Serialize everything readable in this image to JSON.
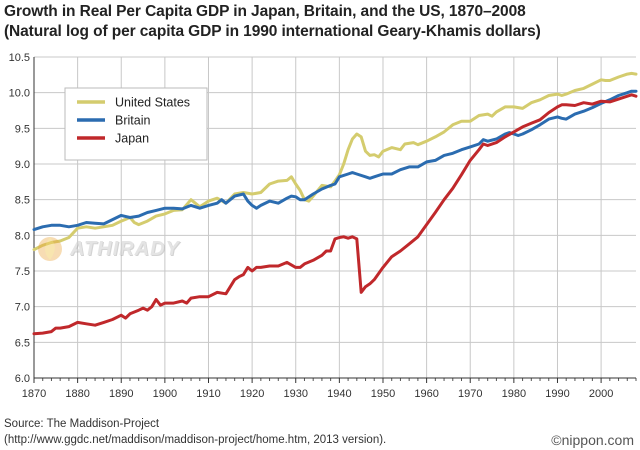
{
  "title_line1": "Growth in Real Per Capita GDP in Japan, Britain, and the US, 1870–2008",
  "title_line2": "(Natural log of per capita GDP in 1990 international Geary-Khamis dollars)",
  "source_line1": "Source: The Maddison-Project",
  "source_line2": "(http://www.ggdc.net/maddison/maddison-project/home.htm, 2013 version).",
  "credit": "©nippon.com",
  "watermark": "ATHIRADY",
  "chart_data": {
    "type": "line",
    "title": "Growth in Real Per Capita GDP in Japan, Britain, and the US, 1870–2008",
    "xlabel": "",
    "ylabel": "",
    "xlim": [
      1870,
      2008
    ],
    "ylim": [
      6.0,
      10.5
    ],
    "grid": true,
    "legend_position": "top-left",
    "x_ticks": [
      1870,
      1880,
      1890,
      1900,
      1910,
      1920,
      1930,
      1940,
      1950,
      1960,
      1970,
      1980,
      1990,
      2000
    ],
    "y_ticks": [
      "6.0",
      "6.5",
      "7.0",
      "7.5",
      "8.0",
      "8.5",
      "9.0",
      "9.5",
      "10.0",
      "10.5"
    ],
    "series": [
      {
        "name": "United States",
        "color": "#d4cc6e",
        "points": [
          [
            1870,
            7.8
          ],
          [
            1872,
            7.86
          ],
          [
            1874,
            7.9
          ],
          [
            1876,
            7.92
          ],
          [
            1878,
            7.97
          ],
          [
            1880,
            8.1
          ],
          [
            1882,
            8.12
          ],
          [
            1884,
            8.1
          ],
          [
            1886,
            8.12
          ],
          [
            1888,
            8.14
          ],
          [
            1890,
            8.2
          ],
          [
            1892,
            8.25
          ],
          [
            1893,
            8.18
          ],
          [
            1894,
            8.15
          ],
          [
            1896,
            8.2
          ],
          [
            1898,
            8.27
          ],
          [
            1900,
            8.3
          ],
          [
            1902,
            8.35
          ],
          [
            1904,
            8.36
          ],
          [
            1906,
            8.5
          ],
          [
            1908,
            8.4
          ],
          [
            1910,
            8.48
          ],
          [
            1912,
            8.52
          ],
          [
            1914,
            8.45
          ],
          [
            1916,
            8.58
          ],
          [
            1918,
            8.6
          ],
          [
            1920,
            8.58
          ],
          [
            1922,
            8.6
          ],
          [
            1924,
            8.72
          ],
          [
            1926,
            8.76
          ],
          [
            1928,
            8.77
          ],
          [
            1929,
            8.82
          ],
          [
            1930,
            8.72
          ],
          [
            1931,
            8.63
          ],
          [
            1932,
            8.5
          ],
          [
            1933,
            8.48
          ],
          [
            1934,
            8.55
          ],
          [
            1936,
            8.7
          ],
          [
            1938,
            8.68
          ],
          [
            1939,
            8.76
          ],
          [
            1940,
            8.85
          ],
          [
            1941,
            9.0
          ],
          [
            1942,
            9.2
          ],
          [
            1943,
            9.35
          ],
          [
            1944,
            9.42
          ],
          [
            1945,
            9.38
          ],
          [
            1946,
            9.18
          ],
          [
            1947,
            9.12
          ],
          [
            1948,
            9.13
          ],
          [
            1949,
            9.1
          ],
          [
            1950,
            9.18
          ],
          [
            1952,
            9.23
          ],
          [
            1954,
            9.2
          ],
          [
            1955,
            9.28
          ],
          [
            1957,
            9.3
          ],
          [
            1958,
            9.27
          ],
          [
            1960,
            9.32
          ],
          [
            1962,
            9.38
          ],
          [
            1964,
            9.45
          ],
          [
            1966,
            9.55
          ],
          [
            1968,
            9.6
          ],
          [
            1970,
            9.6
          ],
          [
            1972,
            9.68
          ],
          [
            1974,
            9.7
          ],
          [
            1975,
            9.67
          ],
          [
            1976,
            9.73
          ],
          [
            1978,
            9.8
          ],
          [
            1980,
            9.8
          ],
          [
            1982,
            9.78
          ],
          [
            1984,
            9.86
          ],
          [
            1986,
            9.9
          ],
          [
            1988,
            9.96
          ],
          [
            1990,
            9.98
          ],
          [
            1991,
            9.96
          ],
          [
            1992,
            9.98
          ],
          [
            1994,
            10.03
          ],
          [
            1996,
            10.06
          ],
          [
            1998,
            10.12
          ],
          [
            2000,
            10.18
          ],
          [
            2001,
            10.17
          ],
          [
            2002,
            10.17
          ],
          [
            2004,
            10.22
          ],
          [
            2006,
            10.26
          ],
          [
            2007,
            10.27
          ],
          [
            2008,
            10.26
          ]
        ]
      },
      {
        "name": "Britain",
        "color": "#2b6cb0",
        "points": [
          [
            1870,
            8.08
          ],
          [
            1872,
            8.12
          ],
          [
            1874,
            8.14
          ],
          [
            1876,
            8.14
          ],
          [
            1878,
            8.12
          ],
          [
            1880,
            8.14
          ],
          [
            1882,
            8.18
          ],
          [
            1884,
            8.17
          ],
          [
            1886,
            8.16
          ],
          [
            1888,
            8.22
          ],
          [
            1890,
            8.28
          ],
          [
            1892,
            8.25
          ],
          [
            1894,
            8.27
          ],
          [
            1896,
            8.32
          ],
          [
            1898,
            8.35
          ],
          [
            1900,
            8.38
          ],
          [
            1902,
            8.38
          ],
          [
            1904,
            8.37
          ],
          [
            1906,
            8.42
          ],
          [
            1908,
            8.38
          ],
          [
            1910,
            8.42
          ],
          [
            1912,
            8.45
          ],
          [
            1913,
            8.5
          ],
          [
            1914,
            8.45
          ],
          [
            1916,
            8.55
          ],
          [
            1918,
            8.58
          ],
          [
            1919,
            8.48
          ],
          [
            1920,
            8.42
          ],
          [
            1921,
            8.38
          ],
          [
            1922,
            8.42
          ],
          [
            1924,
            8.48
          ],
          [
            1926,
            8.45
          ],
          [
            1928,
            8.52
          ],
          [
            1929,
            8.55
          ],
          [
            1930,
            8.54
          ],
          [
            1931,
            8.5
          ],
          [
            1932,
            8.5
          ],
          [
            1934,
            8.58
          ],
          [
            1936,
            8.65
          ],
          [
            1938,
            8.7
          ],
          [
            1939,
            8.72
          ],
          [
            1940,
            8.82
          ],
          [
            1942,
            8.86
          ],
          [
            1943,
            8.88
          ],
          [
            1944,
            8.86
          ],
          [
            1946,
            8.82
          ],
          [
            1947,
            8.8
          ],
          [
            1948,
            8.82
          ],
          [
            1950,
            8.86
          ],
          [
            1952,
            8.86
          ],
          [
            1954,
            8.92
          ],
          [
            1956,
            8.96
          ],
          [
            1958,
            8.96
          ],
          [
            1960,
            9.03
          ],
          [
            1962,
            9.05
          ],
          [
            1964,
            9.12
          ],
          [
            1966,
            9.15
          ],
          [
            1968,
            9.2
          ],
          [
            1970,
            9.24
          ],
          [
            1972,
            9.28
          ],
          [
            1973,
            9.34
          ],
          [
            1974,
            9.32
          ],
          [
            1976,
            9.35
          ],
          [
            1978,
            9.42
          ],
          [
            1979,
            9.44
          ],
          [
            1980,
            9.42
          ],
          [
            1981,
            9.4
          ],
          [
            1982,
            9.42
          ],
          [
            1984,
            9.48
          ],
          [
            1986,
            9.55
          ],
          [
            1988,
            9.63
          ],
          [
            1990,
            9.66
          ],
          [
            1991,
            9.64
          ],
          [
            1992,
            9.63
          ],
          [
            1994,
            9.7
          ],
          [
            1996,
            9.74
          ],
          [
            1998,
            9.79
          ],
          [
            2000,
            9.85
          ],
          [
            2002,
            9.9
          ],
          [
            2004,
            9.96
          ],
          [
            2006,
            10.0
          ],
          [
            2007,
            10.02
          ],
          [
            2008,
            10.02
          ]
        ]
      },
      {
        "name": "Japan",
        "color": "#c0282b",
        "points": [
          [
            1870,
            6.62
          ],
          [
            1872,
            6.63
          ],
          [
            1874,
            6.65
          ],
          [
            1875,
            6.7
          ],
          [
            1876,
            6.7
          ],
          [
            1878,
            6.72
          ],
          [
            1880,
            6.78
          ],
          [
            1882,
            6.76
          ],
          [
            1884,
            6.74
          ],
          [
            1886,
            6.78
          ],
          [
            1888,
            6.82
          ],
          [
            1890,
            6.88
          ],
          [
            1891,
            6.84
          ],
          [
            1892,
            6.9
          ],
          [
            1894,
            6.95
          ],
          [
            1895,
            6.98
          ],
          [
            1896,
            6.95
          ],
          [
            1897,
            7.0
          ],
          [
            1898,
            7.1
          ],
          [
            1899,
            7.02
          ],
          [
            1900,
            7.05
          ],
          [
            1902,
            7.05
          ],
          [
            1904,
            7.08
          ],
          [
            1905,
            7.05
          ],
          [
            1906,
            7.12
          ],
          [
            1908,
            7.14
          ],
          [
            1910,
            7.14
          ],
          [
            1912,
            7.2
          ],
          [
            1914,
            7.18
          ],
          [
            1915,
            7.28
          ],
          [
            1916,
            7.38
          ],
          [
            1917,
            7.42
          ],
          [
            1918,
            7.45
          ],
          [
            1919,
            7.55
          ],
          [
            1920,
            7.5
          ],
          [
            1921,
            7.55
          ],
          [
            1922,
            7.55
          ],
          [
            1924,
            7.57
          ],
          [
            1926,
            7.57
          ],
          [
            1928,
            7.62
          ],
          [
            1930,
            7.55
          ],
          [
            1931,
            7.55
          ],
          [
            1932,
            7.6
          ],
          [
            1934,
            7.65
          ],
          [
            1936,
            7.72
          ],
          [
            1937,
            7.78
          ],
          [
            1938,
            7.78
          ],
          [
            1939,
            7.95
          ],
          [
            1940,
            7.97
          ],
          [
            1941,
            7.98
          ],
          [
            1942,
            7.96
          ],
          [
            1943,
            7.98
          ],
          [
            1944,
            7.95
          ],
          [
            1945,
            7.2
          ],
          [
            1946,
            7.28
          ],
          [
            1947,
            7.32
          ],
          [
            1948,
            7.38
          ],
          [
            1950,
            7.55
          ],
          [
            1952,
            7.7
          ],
          [
            1954,
            7.78
          ],
          [
            1956,
            7.88
          ],
          [
            1958,
            7.98
          ],
          [
            1960,
            8.15
          ],
          [
            1962,
            8.32
          ],
          [
            1964,
            8.5
          ],
          [
            1966,
            8.66
          ],
          [
            1968,
            8.85
          ],
          [
            1970,
            9.05
          ],
          [
            1972,
            9.2
          ],
          [
            1973,
            9.28
          ],
          [
            1974,
            9.26
          ],
          [
            1976,
            9.3
          ],
          [
            1978,
            9.38
          ],
          [
            1980,
            9.45
          ],
          [
            1982,
            9.52
          ],
          [
            1984,
            9.57
          ],
          [
            1986,
            9.62
          ],
          [
            1988,
            9.72
          ],
          [
            1990,
            9.8
          ],
          [
            1991,
            9.83
          ],
          [
            1992,
            9.83
          ],
          [
            1994,
            9.82
          ],
          [
            1996,
            9.86
          ],
          [
            1998,
            9.84
          ],
          [
            2000,
            9.88
          ],
          [
            2002,
            9.87
          ],
          [
            2004,
            9.91
          ],
          [
            2006,
            9.95
          ],
          [
            2007,
            9.97
          ],
          [
            2008,
            9.95
          ]
        ]
      }
    ]
  }
}
